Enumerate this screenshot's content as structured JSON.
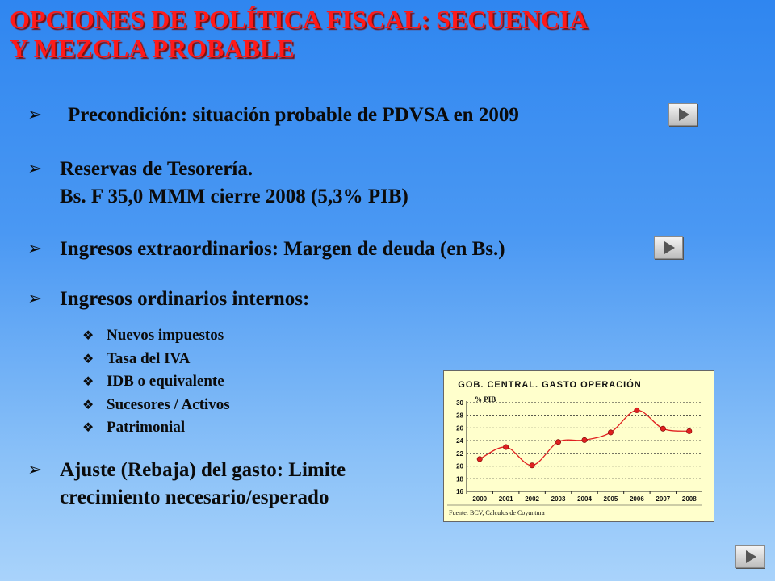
{
  "title": {
    "line1": "OPCIONES DE POLÍTICA FISCAL: SECUENCIA",
    "line2": "Y MEZCLA PROBABLE"
  },
  "bullets": [
    {
      "icon": "arrow-bullet-icon",
      "lines": [
        "Precondición: situación probable de PDVSA en 2009"
      ]
    },
    {
      "icon": "arrow-bullet-icon",
      "lines": [
        "Reservas de Tesorería.",
        "Bs. F 35,0 MMM cierre 2008 (5,3% PIB)"
      ]
    },
    {
      "icon": "arrow-bullet-icon",
      "lines": [
        "Ingresos extraordinarios: Margen de deuda (en Bs.)"
      ]
    },
    {
      "icon": "arrow-bullet-icon",
      "lines": [
        "Ingresos ordinarios internos:"
      ]
    },
    {
      "icon": "arrow-bullet-icon",
      "lines": [
        "Ajuste (Rebaja) del gasto: Limite",
        "crecimiento necesario/esperado"
      ]
    }
  ],
  "sub_items": [
    "Nuevos impuestos",
    "Tasa del IVA",
    "IDB o equivalente",
    "Sucesores / Activos",
    "Patrimonial"
  ],
  "nav_buttons": [
    "play-icon",
    "play-icon",
    "play-icon"
  ],
  "colors": {
    "title": "#ff1a1a",
    "background": "#3b8ff2",
    "chart_bg": "#ffffcc",
    "series": "#e02020"
  },
  "chart_data": {
    "type": "line",
    "title": "GOB. CENTRAL. GASTO OPERACIÓN",
    "ylabel": "% PIB",
    "xlabel": "",
    "categories": [
      "2000",
      "2001",
      "2002",
      "2003",
      "2004",
      "2005",
      "2006",
      "2007",
      "2008"
    ],
    "series": [
      {
        "values": [
          21.1,
          23.0,
          20.1,
          23.8,
          24.1,
          25.3,
          28.8,
          25.9,
          25.5
        ]
      }
    ],
    "ylim": [
      16,
      30
    ],
    "yticks": [
      16,
      18,
      20,
      22,
      24,
      26,
      28,
      30
    ],
    "grid": true,
    "source": "Fuente: BCV, Calculos de Coyuntura"
  }
}
